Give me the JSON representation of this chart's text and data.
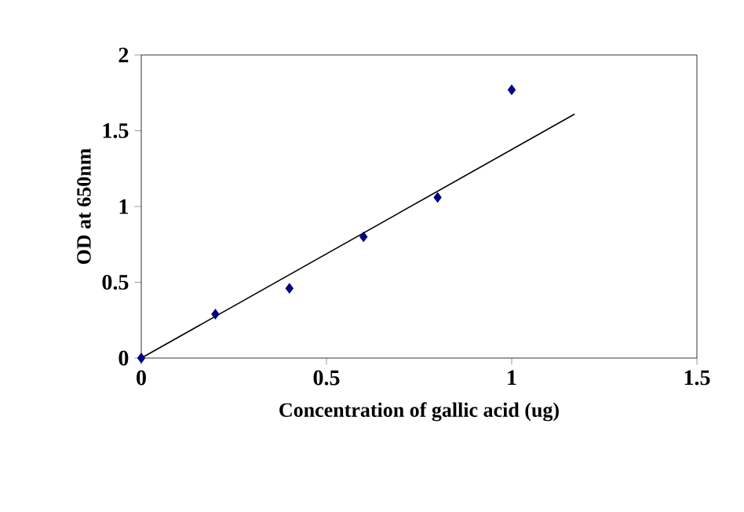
{
  "chart_data": {
    "type": "scatter",
    "xlabel": "Concentration of gallic acid (ug)",
    "ylabel": "OD at 650nm",
    "marker": "diamond",
    "xlim": [
      0,
      1.5
    ],
    "xticks": [
      0,
      0.5,
      1,
      1.5
    ],
    "ylim": [
      0,
      2
    ],
    "yticks": [
      0,
      0.5,
      1,
      1.5,
      2
    ],
    "series": [
      {
        "color": "#000080",
        "x": [
          0,
          0.2,
          0.4,
          0.6,
          0.8,
          1.0
        ],
        "values": [
          0,
          0.29,
          0.46,
          0.8,
          1.06,
          1.77
        ]
      },
      {
        "type": "line",
        "color": "#000000",
        "marker": "none",
        "x": [
          0,
          1.17
        ],
        "values": [
          0,
          1.61
        ]
      }
    ]
  }
}
